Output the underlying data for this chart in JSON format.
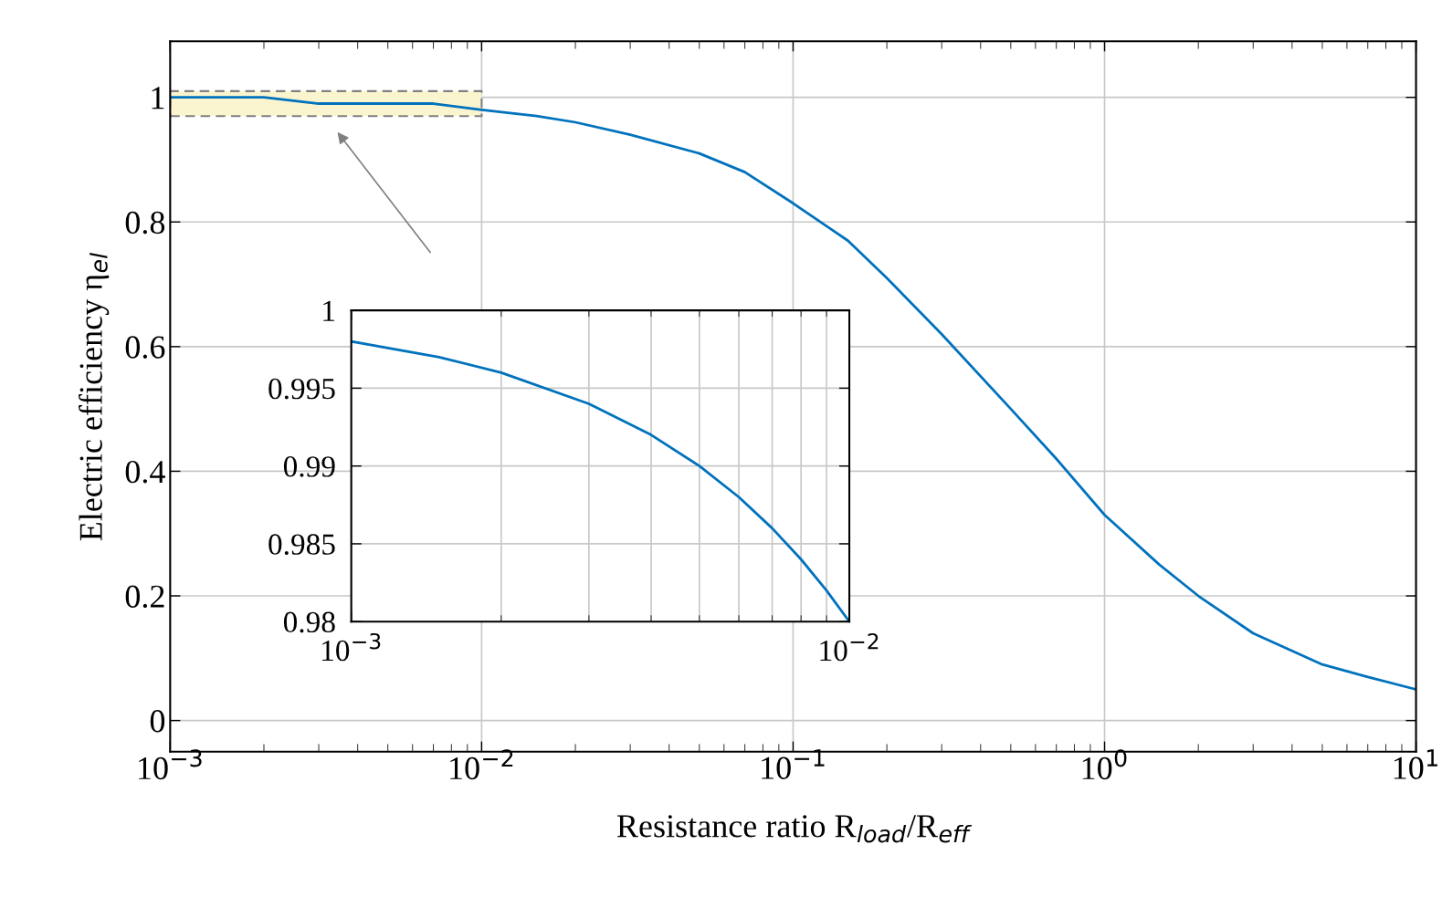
{
  "chart_data": [
    {
      "type": "line",
      "xlabel": "Resistance ratio R$_{load}$/R$_{eff}$",
      "ylabel": "Electric efficiency η$_{el}$",
      "log": "x",
      "grid": true,
      "legend": false,
      "x": [
        0.001,
        0.0015,
        0.002,
        0.003,
        0.005,
        0.007,
        0.01,
        0.015,
        0.02,
        0.03,
        0.05,
        0.07,
        0.1,
        0.15,
        0.2,
        0.3,
        0.5,
        0.7,
        1,
        1.5,
        2,
        3,
        5,
        7,
        10
      ],
      "series": [
        {
          "color": "#0072bd",
          "values": [
            1.0,
            1.0,
            1.0,
            0.99,
            0.99,
            0.99,
            0.98,
            0.97,
            0.96,
            0.94,
            0.91,
            0.88,
            0.83,
            0.77,
            0.71,
            0.62,
            0.5,
            0.42,
            0.33,
            0.25,
            0.2,
            0.14,
            0.09,
            0.07,
            0.05
          ]
        }
      ],
      "xlim": [
        0.001,
        10
      ],
      "xticks": [
        {
          "value": 0.001,
          "label": "10$^{−3}$"
        },
        {
          "value": 0.01,
          "label": "10$^{−2}$"
        },
        {
          "value": 0.1,
          "label": "10$^{−1}$"
        },
        {
          "value": 1,
          "label": "10$^{0}$"
        },
        {
          "value": 10,
          "label": "10$^{1}$"
        }
      ],
      "ylim": [
        -0.05,
        1.09
      ],
      "yticks": [
        0,
        0.2,
        0.4,
        0.6,
        0.8,
        1
      ]
    },
    {
      "type": "line",
      "log": "x",
      "grid": true,
      "legend": false,
      "x": [
        0.001,
        0.0015,
        0.002,
        0.003,
        0.004,
        0.005,
        0.006,
        0.007,
        0.008,
        0.009,
        0.01
      ],
      "series": [
        {
          "color": "#0072bd",
          "values": [
            0.998,
            0.997,
            0.996,
            0.994,
            0.992,
            0.99,
            0.988,
            0.986,
            0.984,
            0.982,
            0.98
          ]
        }
      ],
      "xlim": [
        0.001,
        0.01
      ],
      "xticks": [
        {
          "value": 0.001,
          "label": "10$^{−3}$"
        },
        {
          "value": 0.01,
          "label": "10$^{−2}$"
        }
      ],
      "ylim": [
        0.98,
        1
      ],
      "yticks": [
        0.98,
        0.985,
        0.99,
        0.995,
        1
      ]
    }
  ]
}
